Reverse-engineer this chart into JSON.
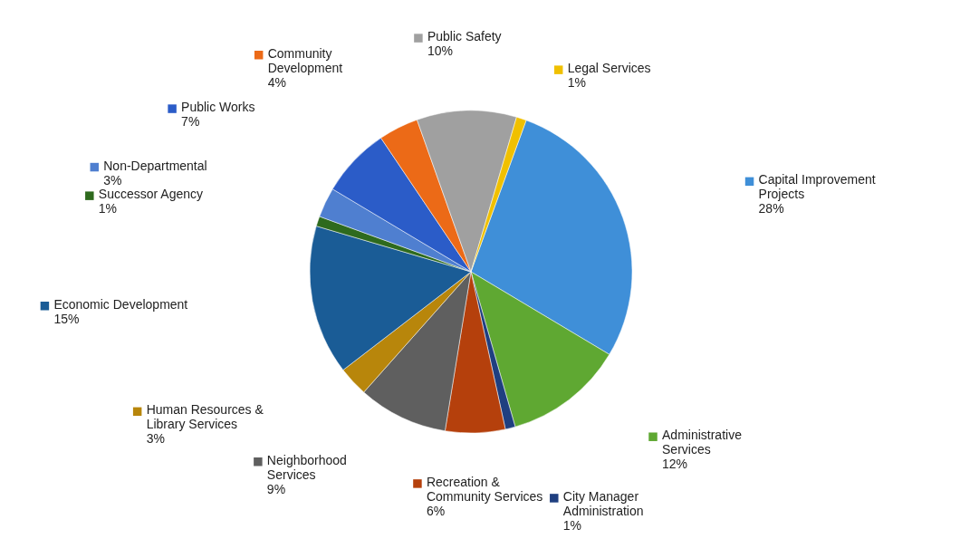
{
  "chart_data": {
    "type": "pie",
    "categories": [
      "Capital Improvement Projects",
      "Administrative Services",
      "City Manager Administration",
      "Recreation & Community Services",
      "Neighborhood Services",
      "Human Resources & Library Services",
      "Economic Development",
      "Successor Agency",
      "Non-Departmental",
      "Public Works",
      "Community Development",
      "Public Safety",
      "Legal Services"
    ],
    "values": [
      28,
      12,
      1,
      6,
      9,
      3,
      15,
      1,
      3,
      7,
      4,
      10,
      1
    ],
    "value_labels": [
      "28%",
      "12%",
      "1%",
      "6%",
      "9%",
      "3%",
      "15%",
      "1%",
      "3%",
      "7%",
      "4%",
      "10%",
      "1%"
    ],
    "legend": "bottom left",
    "colors": [
      "#3f8fd8",
      "#5fa832",
      "#1f3f80",
      "#b5400c",
      "#5f5f5f",
      "#b8860b",
      "#1a5c96",
      "#2e6a1e",
      "#4f7fd0",
      "#2b5cc8",
      "#ec6a17",
      "#a0a0a0",
      "#f0c000"
    ]
  }
}
